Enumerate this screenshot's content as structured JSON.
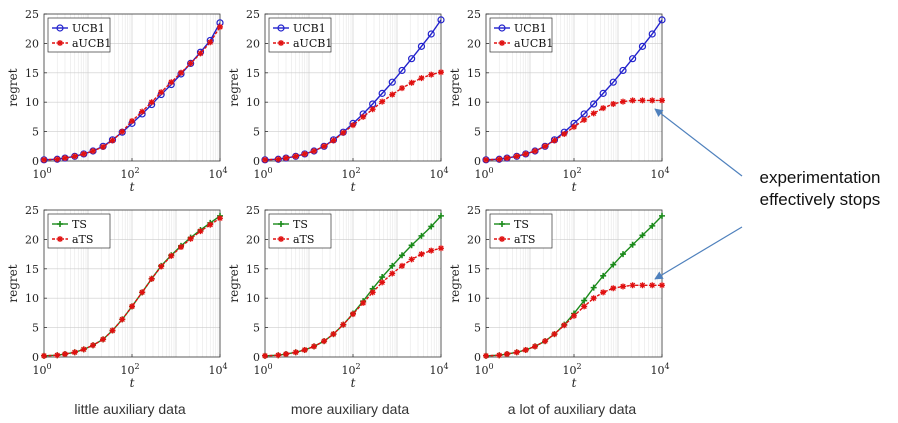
{
  "captions": [
    "little auxiliary data",
    "more auxiliary data",
    "a lot of auxiliary data"
  ],
  "annotation": [
    "experimentation",
    "effectively stops"
  ],
  "colors": {
    "ucb": "#2222cc",
    "ts": "#1a8a1a",
    "aux": "#e01010",
    "arrow": "#4f81bd"
  },
  "chart_data": [
    {
      "type": "line",
      "xscale": "log",
      "xlim": [
        1,
        10000
      ],
      "ylim": [
        0,
        25
      ],
      "grid": true,
      "xlabel": "t",
      "ylabel": "regret",
      "legend": "top-left",
      "xticks": [
        "10^0",
        "10^2",
        "10^4"
      ],
      "yticks": [
        0,
        5,
        10,
        15,
        20,
        25
      ],
      "x": [
        1,
        2,
        3,
        5,
        8,
        13,
        22,
        36,
        60,
        100,
        170,
        280,
        460,
        780,
        1300,
        2150,
        3600,
        6000,
        10000
      ],
      "series": [
        {
          "name": "UCB1",
          "marker": "circle",
          "values": [
            0.2,
            0.3,
            0.5,
            0.8,
            1.2,
            1.7,
            2.5,
            3.6,
            4.9,
            6.4,
            8.0,
            9.6,
            11.3,
            13.0,
            14.8,
            16.6,
            18.5,
            20.5,
            23.5
          ]
        },
        {
          "name": "aUCB1",
          "marker": "star",
          "values": [
            0.2,
            0.3,
            0.5,
            0.8,
            1.2,
            1.7,
            2.4,
            3.5,
            5.0,
            6.8,
            8.4,
            10.0,
            11.7,
            13.4,
            15.0,
            16.6,
            18.3,
            20.2,
            22.8
          ]
        }
      ]
    },
    {
      "type": "line",
      "xscale": "log",
      "xlim": [
        1,
        10000
      ],
      "ylim": [
        0,
        25
      ],
      "grid": true,
      "xlabel": "t",
      "ylabel": "regret",
      "legend": "top-left",
      "xticks": [
        "10^0",
        "10^2",
        "10^4"
      ],
      "yticks": [
        0,
        5,
        10,
        15,
        20,
        25
      ],
      "x": [
        1,
        2,
        3,
        5,
        8,
        13,
        22,
        36,
        60,
        100,
        170,
        280,
        460,
        780,
        1300,
        2150,
        3600,
        6000,
        10000
      ],
      "series": [
        {
          "name": "UCB1",
          "marker": "circle",
          "values": [
            0.2,
            0.3,
            0.5,
            0.8,
            1.2,
            1.7,
            2.5,
            3.6,
            4.9,
            6.4,
            8.0,
            9.7,
            11.5,
            13.4,
            15.4,
            17.4,
            19.5,
            21.6,
            24.0
          ]
        },
        {
          "name": "aUCB1",
          "marker": "star",
          "values": [
            0.2,
            0.3,
            0.5,
            0.8,
            1.2,
            1.7,
            2.5,
            3.5,
            4.8,
            6.1,
            7.5,
            8.8,
            10.1,
            11.3,
            12.4,
            13.3,
            14.1,
            14.7,
            15.1
          ]
        }
      ]
    },
    {
      "type": "line",
      "xscale": "log",
      "xlim": [
        1,
        10000
      ],
      "ylim": [
        0,
        25
      ],
      "grid": true,
      "xlabel": "t",
      "ylabel": "regret",
      "legend": "top-left",
      "xticks": [
        "10^0",
        "10^2",
        "10^4"
      ],
      "yticks": [
        0,
        5,
        10,
        15,
        20,
        25
      ],
      "x": [
        1,
        2,
        3,
        5,
        8,
        13,
        22,
        36,
        60,
        100,
        170,
        280,
        460,
        780,
        1300,
        2150,
        3600,
        6000,
        10000
      ],
      "series": [
        {
          "name": "UCB1",
          "marker": "circle",
          "values": [
            0.2,
            0.3,
            0.5,
            0.8,
            1.2,
            1.7,
            2.5,
            3.6,
            4.9,
            6.4,
            8.0,
            9.7,
            11.5,
            13.4,
            15.4,
            17.4,
            19.5,
            21.6,
            24.0
          ]
        },
        {
          "name": "aUCB1",
          "marker": "star",
          "values": [
            0.2,
            0.3,
            0.5,
            0.8,
            1.2,
            1.7,
            2.5,
            3.5,
            4.6,
            5.8,
            7.0,
            8.1,
            9.0,
            9.7,
            10.1,
            10.3,
            10.3,
            10.3,
            10.3
          ]
        }
      ]
    },
    {
      "type": "line",
      "xscale": "log",
      "xlim": [
        1,
        10000
      ],
      "ylim": [
        0,
        25
      ],
      "grid": true,
      "xlabel": "t",
      "ylabel": "regret",
      "legend": "top-left",
      "xticks": [
        "10^0",
        "10^2",
        "10^4"
      ],
      "yticks": [
        0,
        5,
        10,
        15,
        20,
        25
      ],
      "x": [
        1,
        2,
        3,
        5,
        8,
        13,
        22,
        36,
        60,
        100,
        170,
        280,
        460,
        780,
        1300,
        2150,
        3600,
        6000,
        10000
      ],
      "series": [
        {
          "name": "TS",
          "marker": "cross",
          "values": [
            0.2,
            0.3,
            0.5,
            0.8,
            1.3,
            2.0,
            3.0,
            4.5,
            6.4,
            8.6,
            11.0,
            13.3,
            15.5,
            17.3,
            18.9,
            20.3,
            21.6,
            22.8,
            24.0
          ]
        },
        {
          "name": "aTS",
          "marker": "star",
          "values": [
            0.2,
            0.3,
            0.5,
            0.8,
            1.3,
            2.0,
            3.0,
            4.5,
            6.4,
            8.6,
            11.0,
            13.3,
            15.4,
            17.2,
            18.7,
            20.1,
            21.4,
            22.5,
            23.6
          ]
        }
      ]
    },
    {
      "type": "line",
      "xscale": "log",
      "xlim": [
        1,
        10000
      ],
      "ylim": [
        0,
        25
      ],
      "grid": true,
      "xlabel": "t",
      "ylabel": "regret",
      "legend": "top-left",
      "xticks": [
        "10^0",
        "10^2",
        "10^4"
      ],
      "yticks": [
        0,
        5,
        10,
        15,
        20,
        25
      ],
      "x": [
        1,
        2,
        3,
        5,
        8,
        13,
        22,
        36,
        60,
        100,
        170,
        280,
        460,
        780,
        1300,
        2150,
        3600,
        6000,
        10000
      ],
      "series": [
        {
          "name": "TS",
          "marker": "cross",
          "values": [
            0.2,
            0.3,
            0.5,
            0.8,
            1.2,
            1.8,
            2.7,
            3.9,
            5.5,
            7.4,
            9.5,
            11.6,
            13.6,
            15.5,
            17.3,
            19.0,
            20.6,
            22.2,
            24.0
          ]
        },
        {
          "name": "aTS",
          "marker": "star",
          "values": [
            0.2,
            0.3,
            0.5,
            0.8,
            1.2,
            1.8,
            2.7,
            3.9,
            5.5,
            7.3,
            9.2,
            11.0,
            12.7,
            14.2,
            15.5,
            16.6,
            17.5,
            18.1,
            18.5
          ]
        }
      ]
    },
    {
      "type": "line",
      "xscale": "log",
      "xlim": [
        1,
        10000
      ],
      "ylim": [
        0,
        25
      ],
      "grid": true,
      "xlabel": "t",
      "ylabel": "regret",
      "legend": "top-left",
      "xticks": [
        "10^0",
        "10^2",
        "10^4"
      ],
      "yticks": [
        0,
        5,
        10,
        15,
        20,
        25
      ],
      "x": [
        1,
        2,
        3,
        5,
        8,
        13,
        22,
        36,
        60,
        100,
        170,
        280,
        460,
        780,
        1300,
        2150,
        3600,
        6000,
        10000
      ],
      "series": [
        {
          "name": "TS",
          "marker": "cross",
          "values": [
            0.2,
            0.3,
            0.5,
            0.8,
            1.2,
            1.8,
            2.7,
            3.9,
            5.5,
            7.4,
            9.6,
            11.8,
            13.8,
            15.7,
            17.5,
            19.1,
            20.7,
            22.3,
            24.0
          ]
        },
        {
          "name": "aTS",
          "marker": "star",
          "values": [
            0.2,
            0.3,
            0.5,
            0.8,
            1.2,
            1.8,
            2.7,
            3.9,
            5.4,
            7.0,
            8.6,
            10.0,
            11.0,
            11.7,
            12.0,
            12.2,
            12.2,
            12.2,
            12.2
          ]
        }
      ]
    }
  ]
}
